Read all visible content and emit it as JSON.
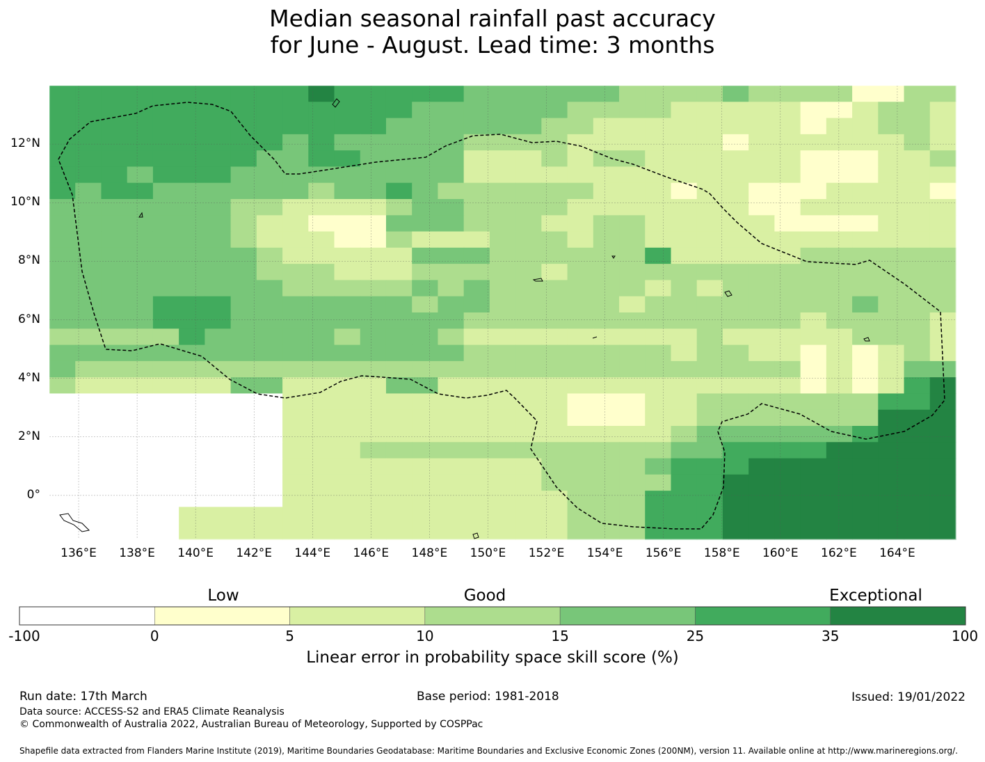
{
  "title": {
    "line1": "Median seasonal rainfall past accuracy",
    "line2": "for June - August. Lead time: 3 months"
  },
  "axes": {
    "lat_labels": [
      "12°N",
      "10°N",
      "8°N",
      "6°N",
      "4°N",
      "2°N",
      "0°"
    ],
    "lat_values": [
      12,
      10,
      8,
      6,
      4,
      2,
      0
    ],
    "lon_labels": [
      "136°E",
      "138°E",
      "140°E",
      "142°E",
      "144°E",
      "146°E",
      "148°E",
      "150°E",
      "152°E",
      "154°E",
      "156°E",
      "158°E",
      "160°E",
      "162°E",
      "164°E"
    ],
    "lon_values": [
      136,
      138,
      140,
      142,
      144,
      146,
      148,
      150,
      152,
      154,
      156,
      158,
      160,
      162,
      164
    ],
    "lon_range": [
      135,
      166
    ],
    "lat_range": [
      -1.5,
      14
    ]
  },
  "legend": {
    "categories": [
      "Low",
      "Good",
      "Exceptional"
    ],
    "tick_labels": [
      "-100",
      "0",
      "5",
      "10",
      "15",
      "25",
      "35",
      "100"
    ],
    "colors": [
      "#ffffff",
      "#ffffcc",
      "#d9f0a3",
      "#addd8e",
      "#78c679",
      "#41ab5d",
      "#238443"
    ],
    "label": "Linear error in probability space skill score (%)"
  },
  "footer": {
    "run_date": "Run date: 17th March",
    "base_period": "Base period: 1981-2018",
    "issued": "Issued: 19/01/2022",
    "data_source": "Data source: ACCESS-S2 and ERA5 Climate Reanalysis",
    "copyright": "© Commonwealth of Australia 2022, Australian Bureau of Meteorology, Supported by COSPPac",
    "shapefile": "Shapefile data extracted from Flanders Marine Institute (2019), Maritime Boundaries Geodatabase: Maritime Boundaries and Exclusive Economic Zones (200NM), version 11. Available online at http://www.marineregions.org/."
  },
  "chart_data": {
    "type": "heatmap",
    "grid_note": "rows from north to south, columns from west to east; value = skill category index 0..6",
    "categories_by_index": [
      "-100 to 0",
      "0 to 5",
      "5 to 10",
      "10 to 15",
      "15 to 25",
      "25 to 35",
      "35 to 100"
    ],
    "rows": [
      "55555555556555554444443333433331133",
      "55555555555555444444333322222112332",
      "55555555555554444443322222222122332",
      "55555555545444443333222222122222232",
      "55555555445544442223233222222111223",
      "55545554444444442222222222222111222",
      "54554444443445433333322212211122221",
      "44444443322223443333222222211222222",
      "44444443221114443332233222221111222",
      "44444443222113222333233222222222222",
      "44444444322222444333333522222333333",
      "44444444333222333332333333333333333",
      "44444444433333434333333232333333333",
      "44445554444444344333332333333334333",
      "44445554444444443333333333333233332",
      "33333544444344432222222223222223332",
      "44444444444444443333333323322121232",
      "43333333333333333333333333333121244",
      "32222224422224422222222222222121256",
      "00000000022222222222111223333333556",
      "00000000022222222222111223333333666",
      "00000000022222222222222234444445666",
      "00000000022233333333333344555566666",
      "00000000022222222223333455566666666",
      "00000000022222222223333355666666666",
      "00000000022222222222333555666666666",
      "00000222222222222222333555666666666",
      "00000222222222222222333555666666666"
    ]
  }
}
